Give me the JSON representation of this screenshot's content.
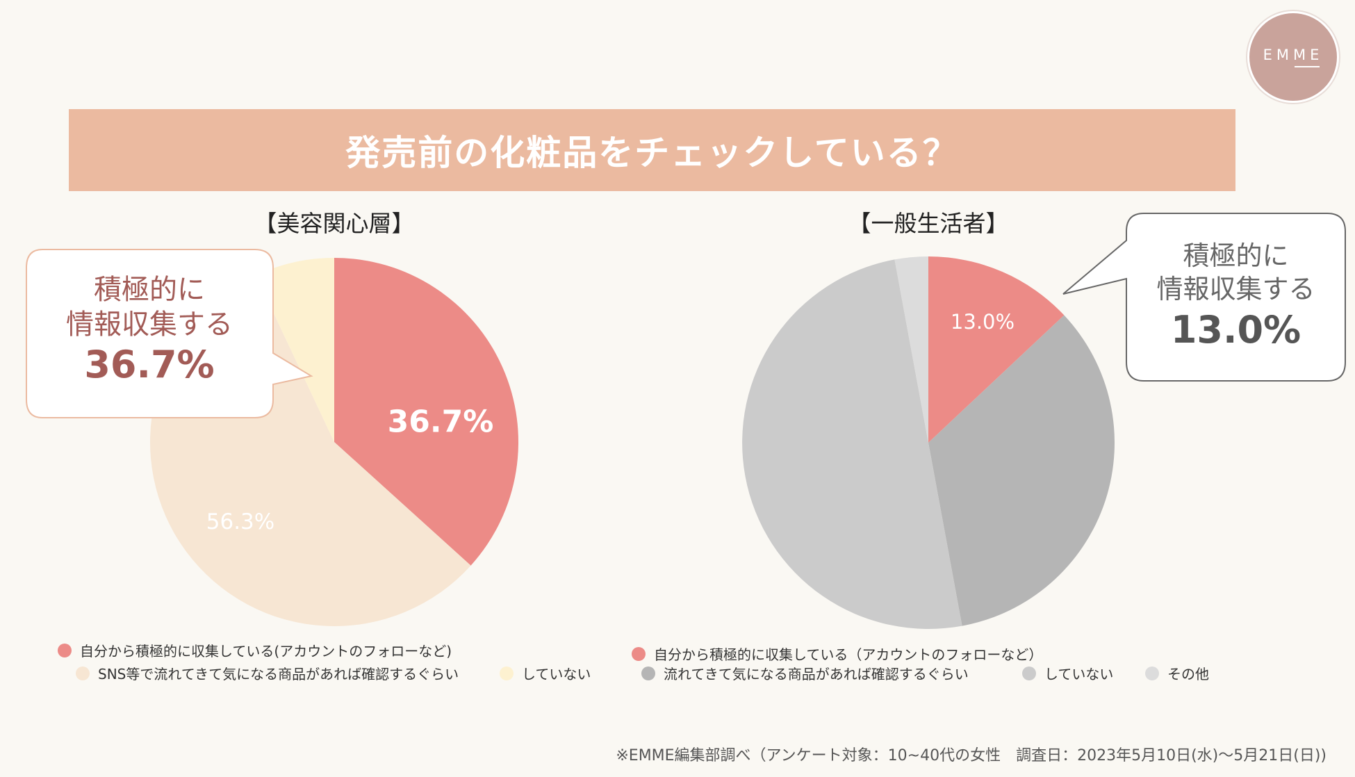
{
  "logo": {
    "text": "EMME"
  },
  "title": "発売前の化粧品をチェックしている？",
  "colors": {
    "background": "#faf8f3",
    "title_bar": "#ebbaa0",
    "active": "#ec8b87",
    "sns": "#f7e6d3",
    "none_beauty": "#fdf1d0",
    "flow": "#b5b5b5",
    "none_general": "#cbcbcb",
    "other": "#dcdcdc"
  },
  "chart_data": [
    {
      "type": "pie",
      "title": "【美容関心層】",
      "unit": "%",
      "start": "top, clockwise",
      "slices": [
        {
          "name": "自分から積極的に収集している(アカウントのフォローなど)",
          "value": 36.7,
          "label": "36.7%",
          "color": "#ec8b87"
        },
        {
          "name": "SNS等で流れてきて気になる商品があれば確認するぐらい",
          "value": 56.3,
          "label": "56.3%",
          "color": "#f7e6d3"
        },
        {
          "name": "していない",
          "value": 7.0,
          "label": "",
          "color": "#fdf1d0"
        }
      ],
      "callout": {
        "line1": "積極的に",
        "line2": "情報収集する",
        "value": "36.7%"
      }
    },
    {
      "type": "pie",
      "title": "【一般生活者】",
      "unit": "%",
      "start": "top, clockwise",
      "slices": [
        {
          "name": "自分から積極的に収集している（アカウントのフォローなど）",
          "value": 13.0,
          "label": "13.0%",
          "color": "#ec8b87"
        },
        {
          "name": "流れてきて気になる商品があれば確認するぐらい",
          "value": 34.1,
          "label": "",
          "color": "#b5b5b5"
        },
        {
          "name": "していない",
          "value": 50.0,
          "label": "",
          "color": "#cbcbcb"
        },
        {
          "name": "その他",
          "value": 2.9,
          "label": "",
          "color": "#dcdcdc"
        }
      ],
      "callout": {
        "line1": "積極的に",
        "line2": "情報収集する",
        "value": "13.0%"
      }
    }
  ],
  "footnote": "※EMME編集部調べ（アンケート対象：10~40代の女性　調査日：2023年5月10日(水)〜5月21日(日))"
}
